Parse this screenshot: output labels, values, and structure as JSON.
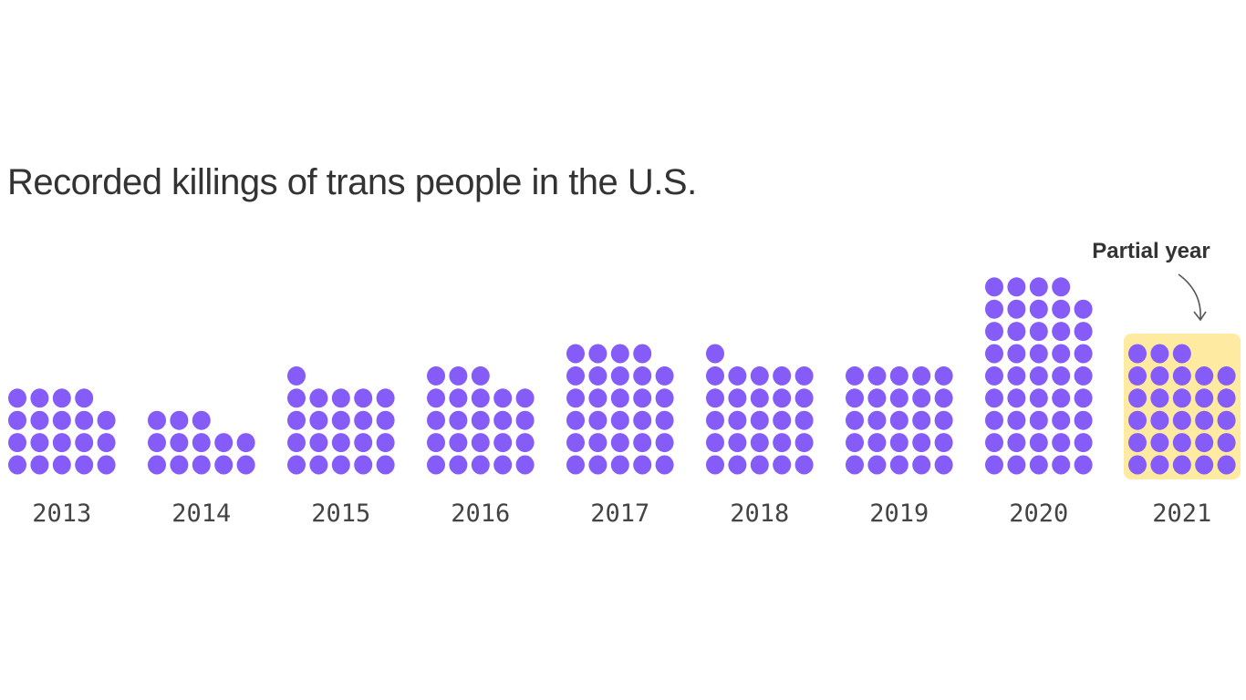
{
  "chart_data": {
    "type": "waffle",
    "title": "Recorded killings of trans people in the U.S.",
    "categories": [
      "2013",
      "2014",
      "2015",
      "2016",
      "2017",
      "2018",
      "2019",
      "2020",
      "2021"
    ],
    "values": [
      19,
      13,
      21,
      23,
      29,
      26,
      25,
      44,
      28
    ],
    "dots_per_row": 5,
    "highlight": {
      "category": "2021",
      "annotation": "Partial year",
      "color": "#feeba1"
    },
    "dot_color": "#855cf8"
  }
}
